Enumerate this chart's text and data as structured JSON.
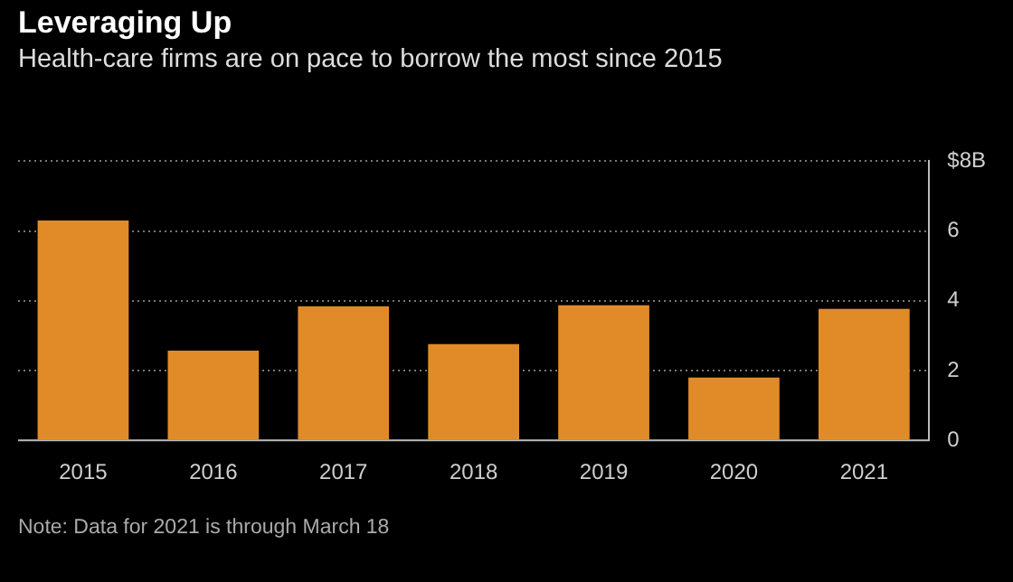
{
  "chart_data": {
    "type": "bar",
    "title": "Leveraging Up",
    "subtitle": "Health-care firms are on pace to borrow the most since 2015",
    "categories": [
      "2015",
      "2016",
      "2017",
      "2018",
      "2019",
      "2020",
      "2021"
    ],
    "values": [
      6.3,
      2.57,
      3.84,
      2.76,
      3.87,
      1.8,
      3.77
    ],
    "color": "#e08b28",
    "ylim": [
      0,
      8
    ],
    "yticks": [
      0,
      2,
      4,
      6,
      {
        "value": 8,
        "label": "$8B"
      }
    ],
    "grid": "y",
    "annotations": [
      "Note: Data for 2021 is through March 18"
    ]
  }
}
